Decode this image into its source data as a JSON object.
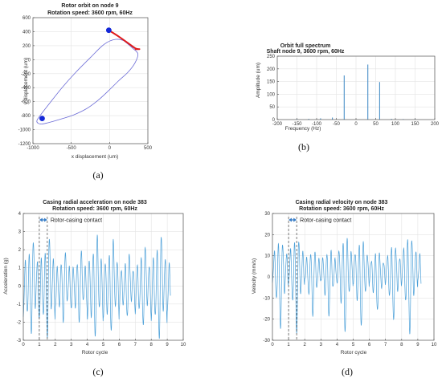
{
  "chart_data": [
    {
      "id": "a",
      "type": "line",
      "panel_label": "(a)",
      "title": "Rotor orbit on node 9",
      "subtitle": "Rotation speed: 3600 rpm, 60Hz",
      "xlabel": "x displacement (um)",
      "ylabel": "y displacement (um)",
      "xlim": [
        -1000,
        500
      ],
      "ylim": [
        -1200,
        600
      ],
      "xticks": [
        -1000,
        -500,
        0,
        500
      ],
      "yticks": [
        -1200,
        -1000,
        -800,
        -600,
        -400,
        -200,
        0,
        200,
        400,
        600
      ],
      "grid": true,
      "orbit_color": "#6b6bd6",
      "contact_color": "#e01b1b",
      "marker_color": "#1428d8",
      "orbit": [
        [
          -10,
          420
        ],
        [
          150,
          300
        ],
        [
          300,
          165
        ],
        [
          370,
          80
        ],
        [
          330,
          -50
        ],
        [
          240,
          -180
        ],
        [
          120,
          -300
        ],
        [
          -10,
          -440
        ],
        [
          -150,
          -580
        ],
        [
          -300,
          -700
        ],
        [
          -470,
          -790
        ],
        [
          -640,
          -850
        ],
        [
          -800,
          -900
        ],
        [
          -900,
          -920
        ],
        [
          -950,
          -880
        ],
        [
          -900,
          -790
        ],
        [
          -780,
          -620
        ],
        [
          -620,
          -400
        ],
        [
          -440,
          -180
        ],
        [
          -250,
          30
        ],
        [
          -70,
          220
        ],
        [
          80,
          290
        ],
        [
          210,
          260
        ],
        [
          300,
          180
        ],
        [
          360,
          150
        ]
      ],
      "contact": [
        [
          -10,
          420
        ],
        [
          120,
          330
        ],
        [
          250,
          230
        ],
        [
          340,
          160
        ],
        [
          390,
          150
        ],
        [
          330,
          150
        ]
      ],
      "markers": [
        [
          -10,
          420
        ],
        [
          -880,
          -840
        ]
      ]
    },
    {
      "id": "b",
      "type": "bar",
      "panel_label": "(b)",
      "title": "Orbit full spectrum",
      "subtitle": "Shaft node 9, 3600 rpm, 60Hz",
      "xlabel": "Frequency (Hz)",
      "ylabel": "Amplitude (um)",
      "xlim": [
        -200,
        200
      ],
      "ylim": [
        0,
        250
      ],
      "xticks": [
        -200,
        -150,
        -100,
        -50,
        0,
        50,
        100,
        150,
        200
      ],
      "yticks": [
        0,
        50,
        100,
        150,
        200,
        250
      ],
      "grid": true,
      "color": "#4a90c8",
      "x": [
        -150,
        -120,
        -90,
        -60,
        -30,
        30,
        60,
        90,
        120,
        150
      ],
      "values": [
        2,
        3,
        5,
        8,
        174,
        217,
        148,
        3,
        2,
        1
      ]
    },
    {
      "id": "c",
      "type": "line",
      "panel_label": "(c)",
      "title": "Casing radial acceleration on node 383",
      "subtitle": "Rotation speed: 3600 rpm, 60Hz",
      "xlabel": "Rotor cycle",
      "ylabel": "Acceleration (g)",
      "xlim": [
        0,
        10
      ],
      "ylim": [
        -3,
        4
      ],
      "xticks": [
        0,
        1,
        2,
        3,
        4,
        5,
        6,
        7,
        8,
        9,
        10
      ],
      "yticks": [
        -3,
        -2,
        -1,
        0,
        1,
        2,
        3,
        4
      ],
      "grid": true,
      "color": "#4a9fd8",
      "annotation": "Rotor-casing contact",
      "contact_start": 1.0,
      "contact_end": 1.5,
      "x_end": 9.2,
      "samples_per_cycle": 80,
      "pattern": [
        [
          0,
          -1.9
        ],
        [
          0.125,
          1.5
        ],
        [
          0.25,
          -1.7
        ],
        [
          0.375,
          1.9
        ],
        [
          0.5,
          -2.9
        ],
        [
          0.625,
          2.8
        ],
        [
          0.75,
          -1.3
        ],
        [
          0.875,
          1.5
        ],
        [
          1,
          -2.1
        ]
      ],
      "pattern_noise": 0.12
    },
    {
      "id": "d",
      "type": "line",
      "panel_label": "(d)",
      "title": "Casing radial velocity on node 383",
      "subtitle": "Rotation speed: 3600 rpm, 60Hz",
      "xlabel": "Rotor cycle",
      "ylabel": "Velocity (mm/s)",
      "xlim": [
        0,
        10
      ],
      "ylim": [
        -30,
        30
      ],
      "xticks": [
        0,
        1,
        2,
        3,
        4,
        5,
        6,
        7,
        8,
        9,
        10
      ],
      "yticks": [
        -30,
        -20,
        -10,
        0,
        10,
        20,
        30
      ],
      "grid": true,
      "color": "#4a9fd8",
      "annotation": "Rotor-casing contact",
      "contact_start": 1.0,
      "contact_end": 1.5,
      "x_end": 9.2,
      "samples_per_cycle": 80,
      "pattern": [
        [
          0,
          -3
        ],
        [
          0.125,
          13
        ],
        [
          0.25,
          -12
        ],
        [
          0.375,
          17
        ],
        [
          0.5,
          -27
        ],
        [
          0.625,
          18
        ],
        [
          0.75,
          -8
        ],
        [
          0.875,
          12
        ],
        [
          1,
          -5
        ]
      ],
      "pattern_noise": 1.0
    }
  ]
}
